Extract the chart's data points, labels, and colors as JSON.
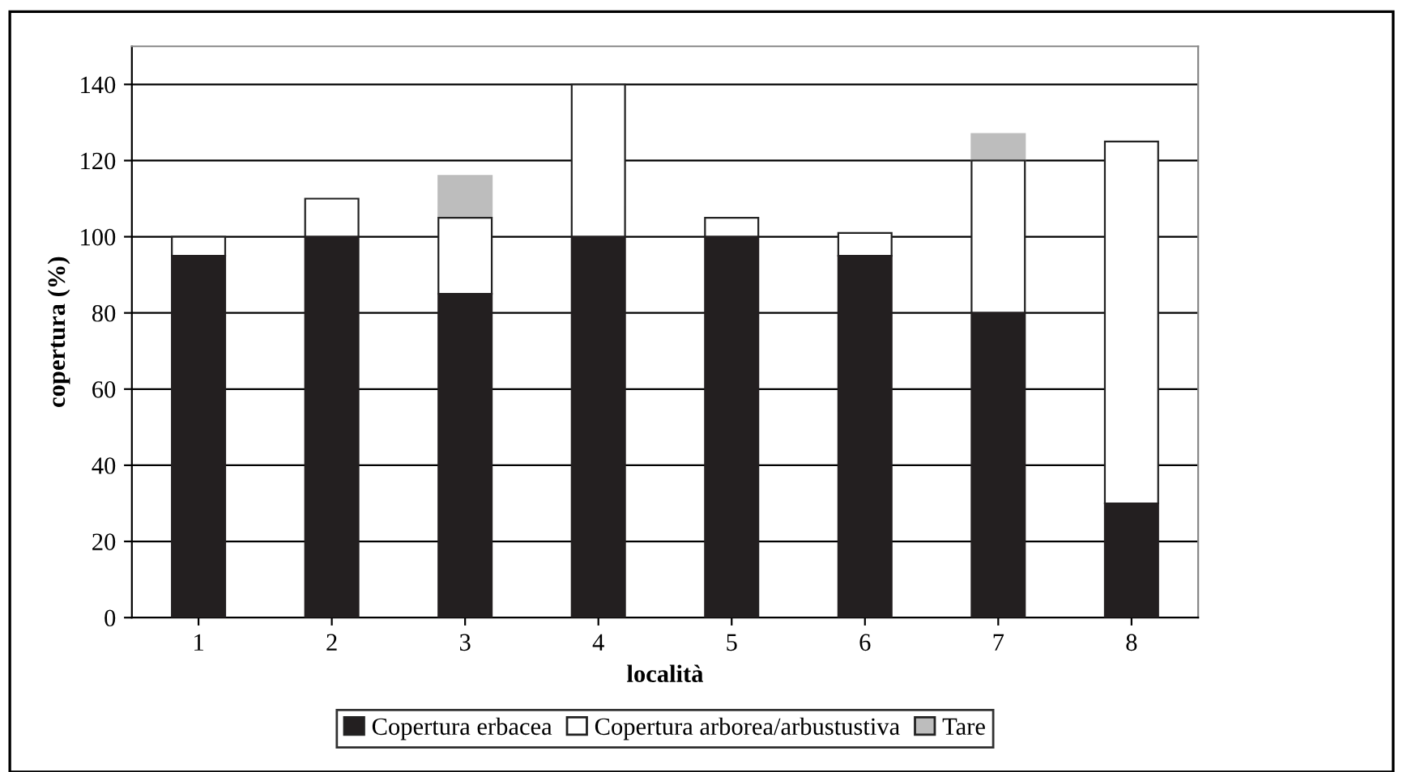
{
  "chart_data": {
    "type": "bar",
    "stacked": true,
    "xlabel": "località",
    "ylabel": "copertura (%)",
    "categories": [
      "1",
      "2",
      "3",
      "4",
      "5",
      "6",
      "7",
      "8"
    ],
    "series": [
      {
        "name": "Copertura erbacea",
        "color": "#231f20",
        "values": [
          95,
          100,
          85,
          100,
          100,
          95,
          80,
          30
        ]
      },
      {
        "name": "Copertura arborea/arbustustiva",
        "color": "#ffffff",
        "values": [
          5,
          10,
          20,
          40,
          5,
          6,
          40,
          95
        ]
      },
      {
        "name": "Tare",
        "color": "#bdbdbd",
        "values": [
          null,
          null,
          11,
          null,
          null,
          null,
          7,
          null
        ]
      }
    ],
    "ylim": [
      0,
      150
    ],
    "yticks": [
      0,
      20,
      40,
      60,
      80,
      100,
      120,
      140
    ],
    "grid": "y",
    "legend": "bottom"
  }
}
